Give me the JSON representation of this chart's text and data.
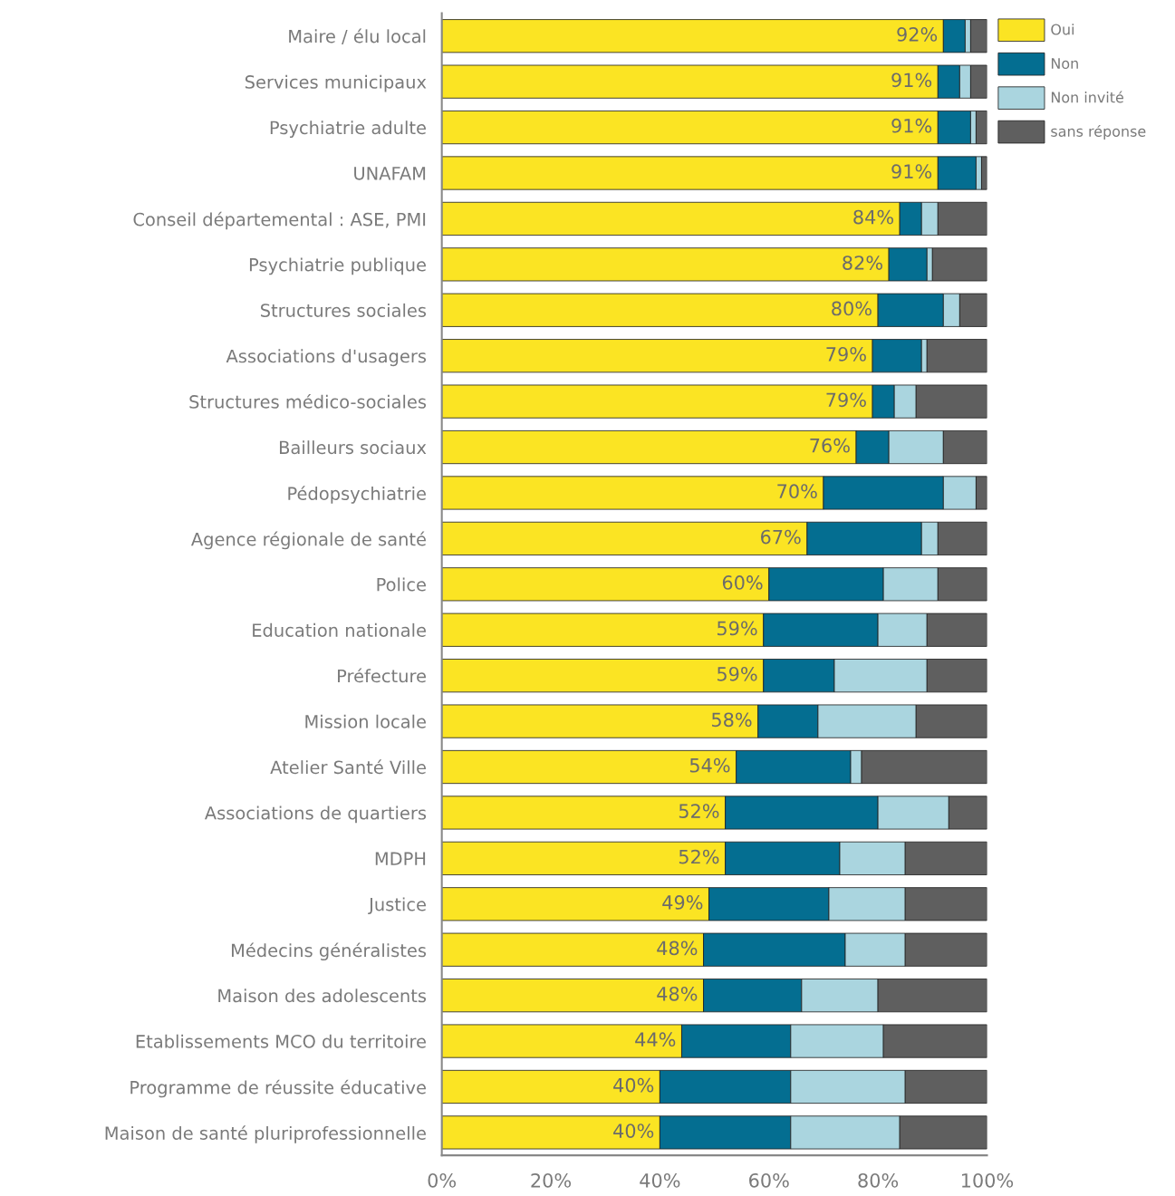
{
  "chart_data": {
    "type": "bar",
    "orientation": "horizontal",
    "stacked": true,
    "legend": "top right",
    "xlim": [
      0,
      100
    ],
    "xticks": [
      {
        "value": 0,
        "label": "0%"
      },
      {
        "value": 20,
        "label": "20%"
      },
      {
        "value": 40,
        "label": "40%"
      },
      {
        "value": 60,
        "label": "60%"
      },
      {
        "value": 80,
        "label": "80%"
      },
      {
        "value": 100,
        "label": "100%"
      }
    ],
    "categories": [
      "Maire / élu local",
      "Services municipaux",
      "Psychiatrie adulte",
      "UNAFAM",
      "Conseil départemental : ASE, PMI",
      "Psychiatrie publique",
      "Structures sociales",
      "Associations d'usagers",
      "Structures médico-sociales",
      "Bailleurs sociaux",
      "Pédopsychiatrie",
      "Agence régionale de santé",
      "Police",
      "Education nationale",
      "Préfecture",
      "Mission locale",
      "Atelier Santé Ville",
      "Associations de quartiers",
      "MDPH",
      "Justice",
      "Médecins généralistes",
      "Maison des adolescents",
      "Etablissements MCO du territoire",
      "Programme de réussite éducative",
      "Maison de santé pluriprofessionnelle"
    ],
    "series": [
      {
        "name": "Oui",
        "color": "#fbe423",
        "values": [
          92,
          91,
          91,
          91,
          84,
          82,
          80,
          79,
          79,
          76,
          70,
          67,
          60,
          59,
          59,
          58,
          54,
          52,
          52,
          49,
          48,
          48,
          44,
          40,
          40
        ],
        "value_labels": [
          "92%",
          "91%",
          "91%",
          "91%",
          "84%",
          "82%",
          "80%",
          "79%",
          "79%",
          "76%",
          "70%",
          "67%",
          "60%",
          "59%",
          "59%",
          "58%",
          "54%",
          "52%",
          "52%",
          "49%",
          "48%",
          "48%",
          "44%",
          "40%",
          "40%"
        ]
      },
      {
        "name": "Non",
        "color": "#046e91",
        "values": [
          4,
          4,
          6,
          7,
          4,
          7,
          12,
          9,
          4,
          6,
          22,
          21,
          21,
          21,
          13,
          11,
          21,
          28,
          21,
          22,
          26,
          18,
          20,
          24,
          24
        ]
      },
      {
        "name": "Non invité",
        "color": "#aad5df",
        "values": [
          1,
          2,
          1,
          1,
          3,
          1,
          3,
          1,
          4,
          10,
          6,
          3,
          10,
          9,
          17,
          18,
          2,
          13,
          12,
          14,
          11,
          14,
          17,
          21,
          20
        ]
      },
      {
        "name": "sans réponse",
        "color": "#5f5f5f",
        "values": [
          3,
          3,
          2,
          1,
          9,
          10,
          5,
          11,
          13,
          8,
          2,
          9,
          9,
          11,
          11,
          13,
          23,
          7,
          15,
          15,
          15,
          20,
          19,
          15,
          16
        ]
      }
    ]
  }
}
